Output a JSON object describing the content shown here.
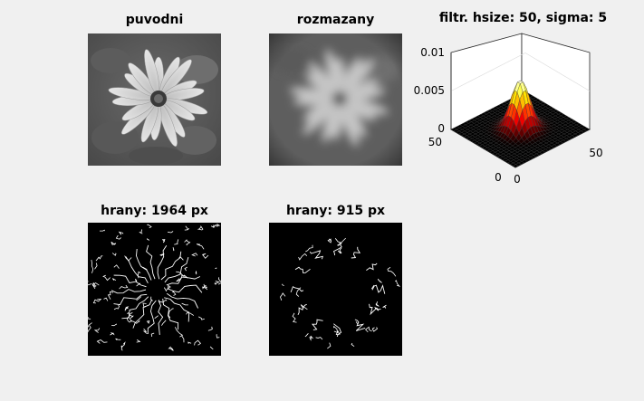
{
  "panels": {
    "original": {
      "title": "puvodni"
    },
    "blurred": {
      "title": "rozmazany"
    },
    "filter": {
      "title": "filtr. hsize: 50, sigma: 5"
    },
    "edges_original": {
      "title": "hrany: 1964 px"
    },
    "edges_blurred": {
      "title": "hrany: 915 px"
    }
  },
  "chart_data": {
    "type": "surface",
    "title": "filtr. hsize: 50, sigma: 5",
    "hsize": 50,
    "sigma": 5,
    "z_ticks": [
      "0",
      "0.005",
      "0.01"
    ],
    "zlim": [
      0,
      0.01
    ],
    "x_ticks": [
      "0",
      "50"
    ],
    "y_ticks": [
      "0",
      "50"
    ],
    "xlim": [
      0,
      50
    ],
    "ylim": [
      0,
      50
    ],
    "colormap": "hot",
    "peak_value": 0.0064
  },
  "colors": {
    "background": "#f0f0f0",
    "axes_bg": "#ffffff",
    "surface_low": "#000000",
    "surface_mid": "#cc0000",
    "surface_high": "#ffff66"
  }
}
